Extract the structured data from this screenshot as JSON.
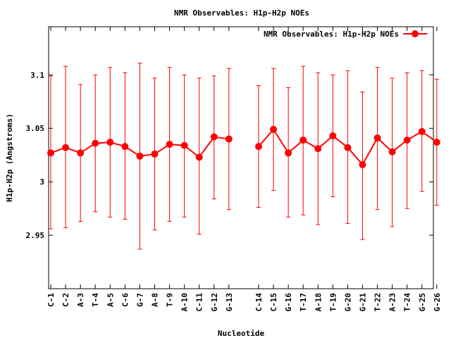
{
  "chart_data": {
    "type": "line",
    "title": "NMR Observables: H1p-H2p NOEs",
    "xlabel": "Nucleotide",
    "ylabel": "H1p-H2p (Angstroms)",
    "ylim": [
      2.9,
      3.145
    ],
    "yticks": [
      {
        "value": 2.95,
        "label": "2.95"
      },
      {
        "value": 3.0,
        "label": "3"
      },
      {
        "value": 3.05,
        "label": "3.05"
      },
      {
        "value": 3.1,
        "label": "3.1"
      }
    ],
    "grid": false,
    "legend_position": "top-right",
    "series": [
      {
        "name": "NMR Observables: H1p-H2p NOEs",
        "color": "#ff0000",
        "marker": "circle",
        "error_bars": true,
        "points": [
          {
            "pos": 1,
            "label": "C-1",
            "y": 3.027,
            "lo": 2.956,
            "hi": 3.099
          },
          {
            "pos": 2,
            "label": "C-2",
            "y": 3.032,
            "lo": 2.957,
            "hi": 3.108
          },
          {
            "pos": 3,
            "label": "A-3",
            "y": 3.027,
            "lo": 2.963,
            "hi": 3.091
          },
          {
            "pos": 4,
            "label": "T-4",
            "y": 3.036,
            "lo": 2.972,
            "hi": 3.1
          },
          {
            "pos": 5,
            "label": "A-5",
            "y": 3.037,
            "lo": 2.967,
            "hi": 3.107
          },
          {
            "pos": 6,
            "label": "C-6",
            "y": 3.033,
            "lo": 2.965,
            "hi": 3.102
          },
          {
            "pos": 7,
            "label": "G-7",
            "y": 3.024,
            "lo": 2.937,
            "hi": 3.111
          },
          {
            "pos": 8,
            "label": "A-8",
            "y": 3.026,
            "lo": 2.955,
            "hi": 3.097
          },
          {
            "pos": 9,
            "label": "T-9",
            "y": 3.035,
            "lo": 2.963,
            "hi": 3.107
          },
          {
            "pos": 10,
            "label": "A-10",
            "y": 3.034,
            "lo": 2.967,
            "hi": 3.1
          },
          {
            "pos": 11,
            "label": "C-11",
            "y": 3.023,
            "lo": 2.951,
            "hi": 3.097
          },
          {
            "pos": 12,
            "label": "G-12",
            "y": 3.042,
            "lo": 2.984,
            "hi": 3.099
          },
          {
            "pos": 13,
            "label": "G-13",
            "y": 3.04,
            "lo": 2.974,
            "hi": 3.106
          },
          {
            "pos": 15,
            "label": "C-14",
            "y": 3.033,
            "lo": 2.976,
            "hi": 3.09
          },
          {
            "pos": 16,
            "label": "C-15",
            "y": 3.049,
            "lo": 2.992,
            "hi": 3.106
          },
          {
            "pos": 17,
            "label": "G-16",
            "y": 3.027,
            "lo": 2.967,
            "hi": 3.088
          },
          {
            "pos": 18,
            "label": "T-17",
            "y": 3.039,
            "lo": 2.969,
            "hi": 3.108
          },
          {
            "pos": 19,
            "label": "A-18",
            "y": 3.031,
            "lo": 2.96,
            "hi": 3.102
          },
          {
            "pos": 20,
            "label": "T-19",
            "y": 3.043,
            "lo": 2.986,
            "hi": 3.1
          },
          {
            "pos": 21,
            "label": "G-20",
            "y": 3.032,
            "lo": 2.961,
            "hi": 3.104
          },
          {
            "pos": 22,
            "label": "G-21",
            "y": 3.016,
            "lo": 2.946,
            "hi": 3.084
          },
          {
            "pos": 23,
            "label": "T-22",
            "y": 3.041,
            "lo": 2.974,
            "hi": 3.107
          },
          {
            "pos": 24,
            "label": "A-23",
            "y": 3.028,
            "lo": 2.958,
            "hi": 3.097
          },
          {
            "pos": 25,
            "label": "T-24",
            "y": 3.039,
            "lo": 2.975,
            "hi": 3.102
          },
          {
            "pos": 26,
            "label": "G-25",
            "y": 3.047,
            "lo": 2.991,
            "hi": 3.104
          },
          {
            "pos": 27,
            "label": "G-26",
            "y": 3.037,
            "lo": 2.978,
            "hi": 3.096
          }
        ]
      }
    ]
  }
}
